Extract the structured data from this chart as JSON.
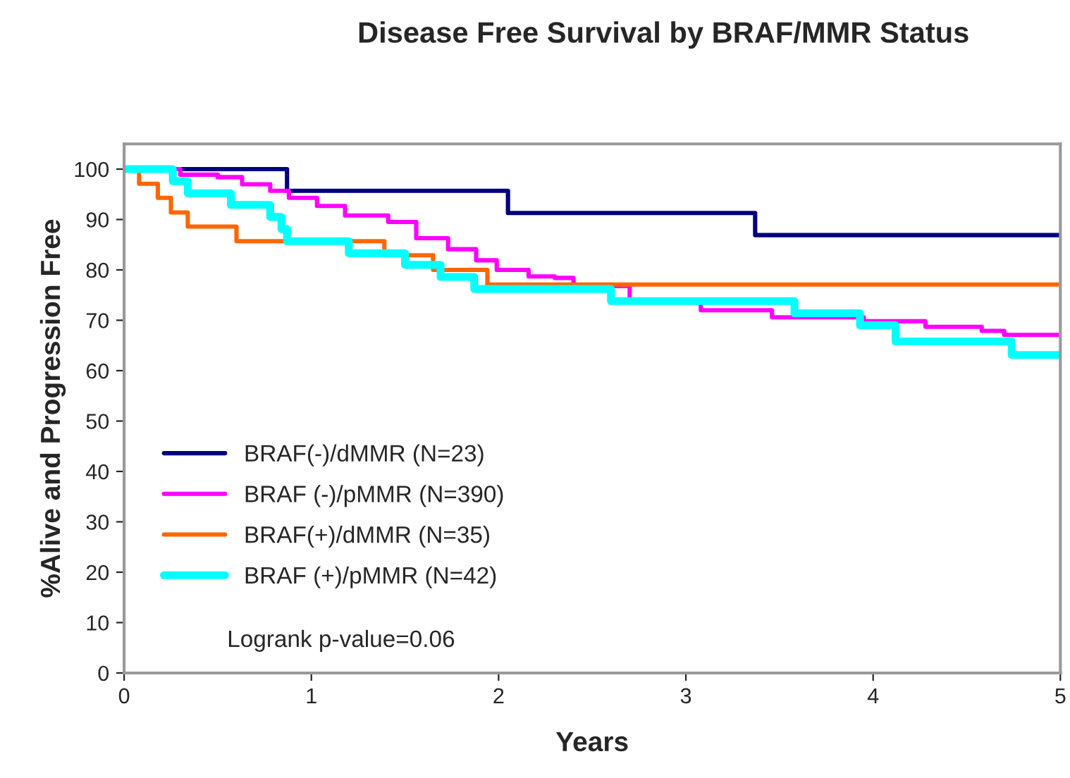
{
  "chart_data": {
    "type": "step",
    "title": "Disease Free Survival by BRAF/MMR Status",
    "xlabel": "Years",
    "ylabel": "%Alive and Progression Free",
    "xlim": [
      0,
      5
    ],
    "xticks": [
      0,
      1,
      2,
      3,
      4,
      5
    ],
    "ylim": [
      0,
      105
    ],
    "yticks": [
      0,
      10,
      20,
      30,
      40,
      50,
      60,
      70,
      80,
      90,
      100
    ],
    "grid": false,
    "legend": "bottom left",
    "marker": "none",
    "line_style": "solid",
    "annotations": [
      "Logrank p-value=0.06"
    ],
    "series": [
      {
        "name": "BRAF(-)/dMMR (N=23)",
        "color": "#000080",
        "x": [
          0,
          0.87,
          2.05,
          3.37,
          5
        ],
        "values": [
          100,
          95.7,
          91.3,
          86.9,
          86.9
        ]
      },
      {
        "name": "BRAF (-)/pMMR (N=390)",
        "color": "#ff00ff",
        "x": [
          0,
          0.3,
          0.5,
          0.63,
          0.78,
          0.88,
          1.03,
          1.18,
          1.41,
          1.56,
          1.73,
          1.88,
          1.99,
          2.16,
          2.3,
          2.4,
          2.7,
          3.08,
          3.46,
          3.95,
          4.28,
          4.58,
          4.7,
          5
        ],
        "values": [
          100,
          98.9,
          98.4,
          97,
          95.7,
          94.3,
          92.7,
          90.8,
          89.5,
          86.3,
          84.1,
          81.9,
          80,
          78.7,
          78.4,
          76.8,
          74.1,
          72,
          70.6,
          69.8,
          68.7,
          67.9,
          67.1,
          67.1
        ]
      },
      {
        "name": "BRAF(+)/dMMR (N=35)",
        "color": "#ff6600",
        "x": [
          0,
          0.08,
          0.18,
          0.25,
          0.34,
          0.6,
          1.39,
          1.65,
          1.94,
          5
        ],
        "values": [
          100,
          97.1,
          94.3,
          91.4,
          88.6,
          85.7,
          82.9,
          80,
          77.1,
          77.1
        ]
      },
      {
        "name": "BRAF (+)/pMMR (N=42)",
        "color": "#00ffff",
        "x": [
          0,
          0.26,
          0.34,
          0.57,
          0.78,
          0.84,
          0.87,
          1.2,
          1.5,
          1.69,
          1.87,
          2.6,
          3.58,
          3.93,
          4.12,
          4.74,
          5
        ],
        "values": [
          100,
          97.6,
          95.2,
          92.9,
          90.5,
          88.1,
          85.7,
          83.3,
          81,
          78.6,
          76.2,
          73.8,
          71.4,
          69,
          65.8,
          63.1,
          63.1
        ]
      }
    ]
  }
}
